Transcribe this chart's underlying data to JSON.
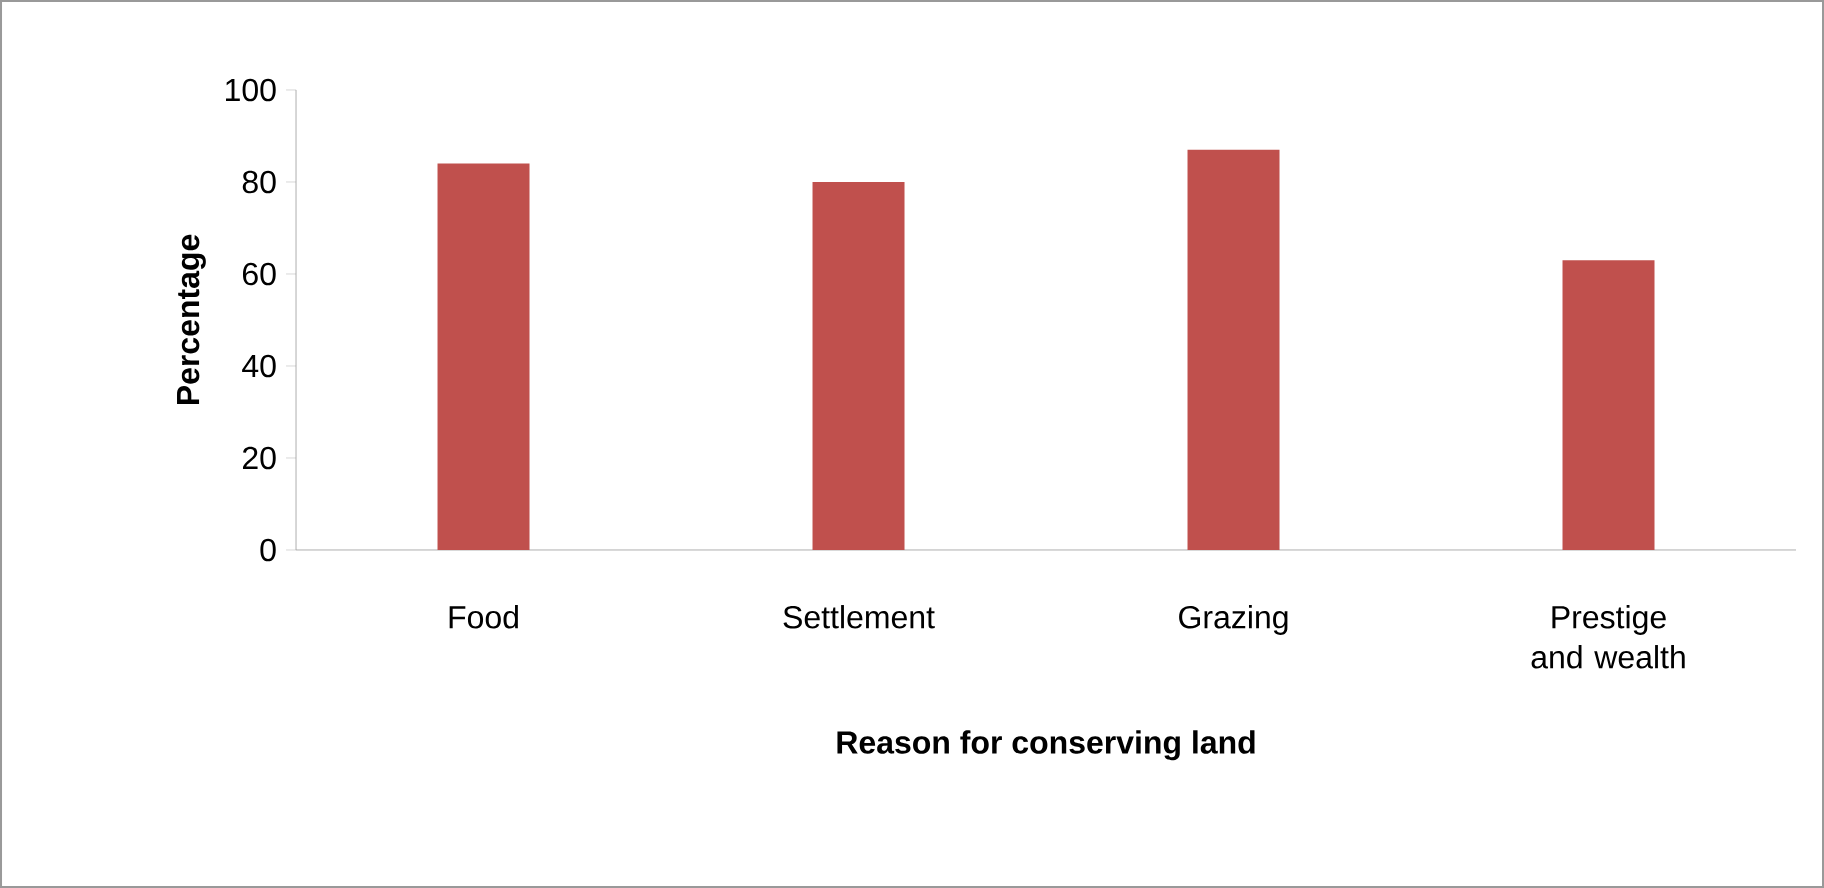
{
  "chart_data": {
    "type": "bar",
    "xlabel": "Reason for conserving land",
    "ylabel": "Percentage",
    "categories": [
      "Food",
      "Settlement",
      "Grazing",
      "Prestige and wealth"
    ],
    "values": [
      84,
      80,
      87,
      63
    ],
    "color": "#c0504d",
    "ylim": [
      0,
      100
    ],
    "yticks": [
      0,
      20,
      40,
      60,
      80,
      100
    ],
    "grid": false
  }
}
